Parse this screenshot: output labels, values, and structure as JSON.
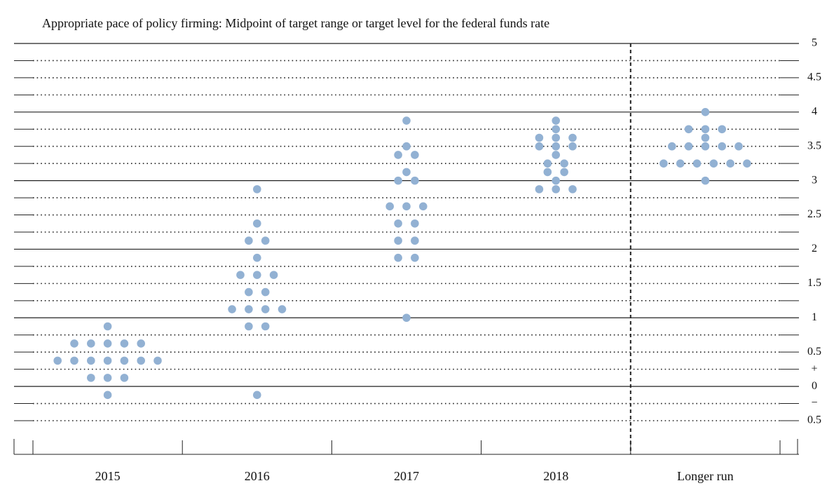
{
  "chart_data": {
    "type": "dot",
    "title": "Appropriate pace of policy firming: Midpoint of target range or target level for the federal funds rate",
    "categories": [
      "2015",
      "2016",
      "2017",
      "2018",
      "Longer run"
    ],
    "color": "#92b1d3",
    "dots": [
      [
        0.875,
        0.625,
        0.625,
        0.625,
        0.625,
        0.625,
        0.375,
        0.375,
        0.375,
        0.375,
        0.375,
        0.375,
        0.375,
        0.125,
        0.125,
        0.125,
        -0.125
      ],
      [
        2.875,
        2.375,
        2.125,
        2.125,
        1.875,
        1.625,
        1.625,
        1.625,
        1.375,
        1.375,
        1.125,
        1.125,
        1.125,
        1.125,
        0.875,
        0.875,
        -0.125
      ],
      [
        3.875,
        3.5,
        3.375,
        3.375,
        3.125,
        3.0,
        3.0,
        2.625,
        2.625,
        2.625,
        2.375,
        2.375,
        2.125,
        2.125,
        1.875,
        1.875,
        1.0
      ],
      [
        3.875,
        3.75,
        3.625,
        3.625,
        3.625,
        3.5,
        3.5,
        3.5,
        3.375,
        3.25,
        3.25,
        3.125,
        3.125,
        3.0,
        2.875,
        2.875,
        2.875
      ],
      [
        4.0,
        3.75,
        3.75,
        3.75,
        3.625,
        3.5,
        3.5,
        3.5,
        3.5,
        3.5,
        3.25,
        3.25,
        3.25,
        3.25,
        3.25,
        3.25,
        3.0
      ]
    ],
    "ylim": [
      -0.5,
      5
    ],
    "yticks": [
      5,
      4.5,
      4,
      3.5,
      3,
      2.5,
      2,
      1.5,
      1,
      0.5,
      {
        "value": 0.25,
        "label": "+"
      },
      0,
      {
        "value": -0.25,
        "label": "−"
      },
      {
        "value": -0.5,
        "label": "0.5"
      }
    ],
    "minor_gridlines": [
      4.75,
      4.25,
      3.75,
      3.25,
      2.75,
      2.25,
      1.75,
      1.25,
      0.75
    ],
    "divider_before_category": 4
  }
}
